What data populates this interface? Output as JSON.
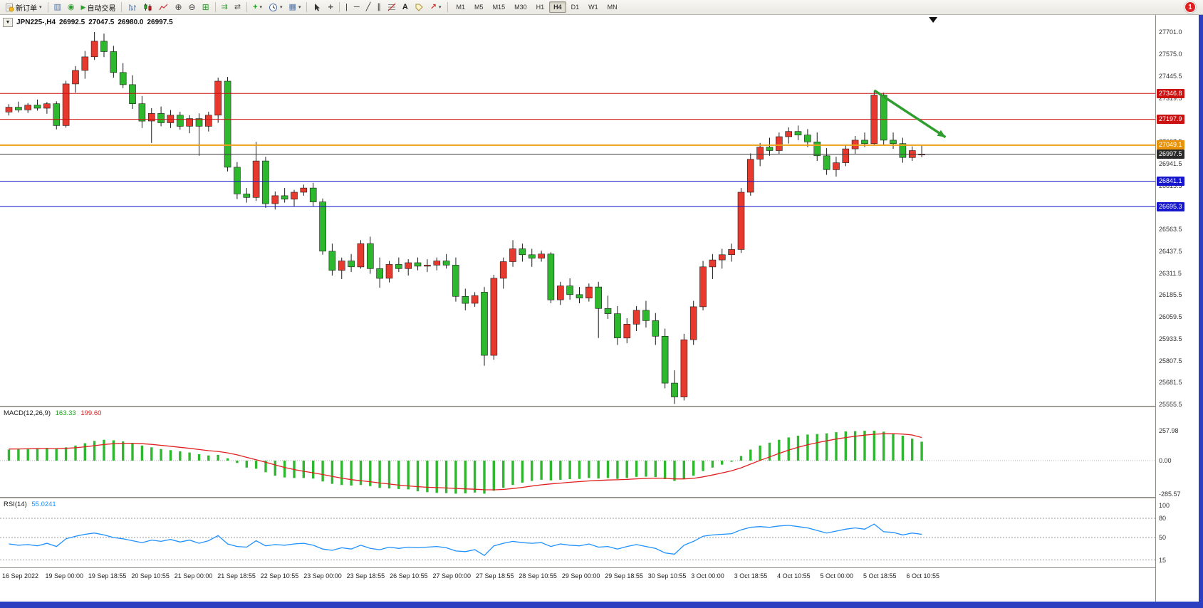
{
  "window": {
    "edge_color": "#2b3fc0"
  },
  "toolbar": {
    "new_order_label": "新订单",
    "autotrading_label": "自动交易",
    "text_tool_label": "A",
    "timeframes": [
      "M1",
      "M5",
      "M15",
      "M30",
      "H1",
      "H4",
      "D1",
      "W1",
      "MN"
    ],
    "active_timeframe": "H4",
    "notification_count": "1"
  },
  "icons": {
    "caret": "▾",
    "chart_dropdown": "▼",
    "charts": "▥",
    "sound": "◉",
    "autotrading_play": "▶",
    "zoom_in": "⊕",
    "zoom_out": "⊖",
    "tile_windows": "⊞",
    "auto_scroll": "⇉",
    "chart_shift": "⇄",
    "indicators_plus": "+",
    "templates": "▦",
    "crosshair": "+",
    "vertical_line": "|",
    "horizontal_line": "─",
    "trend_line": "╱",
    "channel": "∥",
    "arrows": "↗"
  },
  "chart": {
    "title": {
      "symbol_period": "JPN225-,H4",
      "open": "26992.5",
      "high": "27047.5",
      "low": "26980.0",
      "close": "26997.5"
    },
    "hlines": [
      {
        "price": 27346.8,
        "label": "27346.8",
        "color": "#cc1111",
        "badge_bg": "#cc1111",
        "width": 1
      },
      {
        "price": 27197.9,
        "label": "27197.9",
        "color": "#cc1111",
        "badge_bg": "#cc1111",
        "width": 1
      },
      {
        "price": 27049.1,
        "label": "27049.1",
        "color": "#eda118",
        "badge_bg": "#e8920a",
        "width": 2
      },
      {
        "price": 26997.5,
        "label": "26997.5",
        "color": "#3c3c3c",
        "badge_bg": "#2a2a2a",
        "width": 1
      },
      {
        "price": 26841.1,
        "label": "26841.1",
        "color": "#1616cc",
        "badge_bg": "#1616cc",
        "width": 1
      },
      {
        "price": 26695.3,
        "label": "26695.3",
        "color": "#1616cc",
        "badge_bg": "#1616cc",
        "width": 1
      }
    ],
    "price_axis_labels": [
      "27701.0",
      "27575.0",
      "27445.5",
      "27319.5",
      "27193.5",
      "27067.5",
      "26941.5",
      "26815.5",
      "26689.5",
      "26563.5",
      "26437.5",
      "26311.5",
      "26185.5",
      "26059.5",
      "25933.5",
      "25807.5",
      "25681.5",
      "25555.5"
    ],
    "time_axis_labels": [
      "16 Sep 2022",
      "19 Sep 00:00",
      "19 Sep 18:55",
      "20 Sep 10:55",
      "21 Sep 00:00",
      "21 Sep 18:55",
      "22 Sep 10:55",
      "23 Sep 00:00",
      "23 Sep 18:55",
      "26 Sep 10:55",
      "27 Sep 00:00",
      "27 Sep 18:55",
      "28 Sep 10:55",
      "29 Sep 00:00",
      "29 Sep 18:55",
      "30 Sep 10:55",
      "3 Oct 00:00",
      "3 Oct 18:55",
      "4 Oct 10:55",
      "5 Oct 00:00",
      "5 Oct 18:55",
      "6 Oct 10:55"
    ]
  },
  "chart_data": {
    "type": "candlestick",
    "symbol": "JPN225-",
    "timeframe": "H4",
    "y_axis_range": [
      25555.5,
      27701.0
    ],
    "candles": {
      "up_color": "#e8392e",
      "down_color": "#2eb82e",
      "wick_color": "#1a1a1a",
      "ohlc": [
        [
          27240,
          27285,
          27220,
          27268
        ],
        [
          27268,
          27300,
          27238,
          27252
        ],
        [
          27252,
          27292,
          27235,
          27280
        ],
        [
          27280,
          27312,
          27248,
          27262
        ],
        [
          27262,
          27298,
          27230,
          27288
        ],
        [
          27288,
          27302,
          27140,
          27162
        ],
        [
          27162,
          27420,
          27150,
          27402
        ],
        [
          27402,
          27505,
          27352,
          27480
        ],
        [
          27480,
          27592,
          27432,
          27558
        ],
        [
          27558,
          27701,
          27540,
          27648
        ],
        [
          27648,
          27692,
          27556,
          27588
        ],
        [
          27588,
          27622,
          27438,
          27468
        ],
        [
          27468,
          27522,
          27378,
          27398
        ],
        [
          27398,
          27452,
          27258,
          27288
        ],
        [
          27288,
          27332,
          27148,
          27188
        ],
        [
          27188,
          27262,
          27062,
          27232
        ],
        [
          27232,
          27272,
          27158,
          27178
        ],
        [
          27178,
          27252,
          27148,
          27222
        ],
        [
          27222,
          27242,
          27138,
          27158
        ],
        [
          27158,
          27222,
          27118,
          27202
        ],
        [
          27202,
          27232,
          26988,
          27158
        ],
        [
          27158,
          27242,
          27128,
          27222
        ],
        [
          27222,
          27438,
          27178,
          27418
        ],
        [
          27418,
          27442,
          26898,
          26922
        ],
        [
          26922,
          26952,
          26738,
          26768
        ],
        [
          26768,
          26802,
          26718,
          26748
        ],
        [
          26748,
          27068,
          26728,
          26958
        ],
        [
          26958,
          26982,
          26688,
          26712
        ],
        [
          26712,
          26782,
          26678,
          26758
        ],
        [
          26758,
          26802,
          26718,
          26738
        ],
        [
          26738,
          26792,
          26698,
          26778
        ],
        [
          26778,
          26822,
          26758,
          26802
        ],
        [
          26802,
          26832,
          26698,
          26722
        ],
        [
          26722,
          26742,
          26418,
          26438
        ],
        [
          26438,
          26482,
          26298,
          26328
        ],
        [
          26328,
          26402,
          26278,
          26382
        ],
        [
          26382,
          26422,
          26318,
          26348
        ],
        [
          26348,
          26502,
          26338,
          26482
        ],
        [
          26482,
          26522,
          26308,
          26338
        ],
        [
          26338,
          26402,
          26228,
          26282
        ],
        [
          26282,
          26382,
          26258,
          26362
        ],
        [
          26362,
          26402,
          26318,
          26338
        ],
        [
          26338,
          26392,
          26298,
          26372
        ],
        [
          26372,
          26402,
          26328,
          26352
        ],
        [
          26352,
          26392,
          26318,
          26358
        ],
        [
          26358,
          26402,
          26328,
          26382
        ],
        [
          26382,
          26422,
          26338,
          26358
        ],
        [
          26358,
          26402,
          26148,
          26178
        ],
        [
          26178,
          26222,
          26098,
          26138
        ],
        [
          26138,
          26202,
          26118,
          26182
        ],
        [
          26202,
          26232,
          25778,
          25838
        ],
        [
          25838,
          26302,
          25812,
          26282
        ],
        [
          26282,
          26402,
          26222,
          26378
        ],
        [
          26378,
          26502,
          26348,
          26452
        ],
        [
          26452,
          26482,
          26378,
          26418
        ],
        [
          26418,
          26452,
          26348,
          26398
        ],
        [
          26398,
          26442,
          26378,
          26422
        ],
        [
          26422,
          26432,
          26138,
          26158
        ],
        [
          26158,
          26262,
          26128,
          26238
        ],
        [
          26238,
          26282,
          26158,
          26188
        ],
        [
          26188,
          26232,
          26138,
          26168
        ],
        [
          26168,
          26252,
          26148,
          26232
        ],
        [
          26232,
          26262,
          25938,
          26108
        ],
        [
          26108,
          26182,
          26048,
          26078
        ],
        [
          26078,
          26122,
          25898,
          25938
        ],
        [
          25938,
          26052,
          25908,
          26018
        ],
        [
          26018,
          26122,
          25978,
          26098
        ],
        [
          26098,
          26152,
          25998,
          26038
        ],
        [
          26038,
          26082,
          25898,
          25948
        ],
        [
          25948,
          25992,
          25648,
          25678
        ],
        [
          25678,
          25752,
          25558,
          25598
        ],
        [
          25598,
          25962,
          25578,
          25928
        ],
        [
          25928,
          26152,
          25898,
          26118
        ],
        [
          26118,
          26382,
          26098,
          26348
        ],
        [
          26348,
          26422,
          26278,
          26388
        ],
        [
          26388,
          26452,
          26338,
          26418
        ],
        [
          26418,
          26482,
          26378,
          26448
        ],
        [
          26448,
          26802,
          26428,
          26778
        ],
        [
          26778,
          27002,
          26758,
          26968
        ],
        [
          26968,
          27062,
          26928,
          27038
        ],
        [
          27038,
          27092,
          26988,
          27018
        ],
        [
          27018,
          27122,
          26998,
          27098
        ],
        [
          27098,
          27152,
          27058,
          27128
        ],
        [
          27128,
          27162,
          27078,
          27108
        ],
        [
          27108,
          27142,
          27038,
          27068
        ],
        [
          27068,
          27122,
          26958,
          26988
        ],
        [
          26988,
          27032,
          26878,
          26908
        ],
        [
          26908,
          26982,
          26868,
          26948
        ],
        [
          26948,
          27052,
          26928,
          27028
        ],
        [
          27028,
          27102,
          26998,
          27078
        ],
        [
          27078,
          27122,
          27038,
          27058
        ],
        [
          27058,
          27362,
          27048,
          27338
        ],
        [
          27338,
          27352,
          27048,
          27078
        ],
        [
          27078,
          27122,
          27028,
          27058
        ],
        [
          27058,
          27092,
          26948,
          26978
        ],
        [
          26978,
          27042,
          26958,
          27018
        ],
        [
          26992.5,
          27047.5,
          26980.0,
          26997.5
        ]
      ]
    },
    "macd": {
      "label": "MACD(12,26,9)",
      "main_value": "163.33",
      "signal_value": "199.60",
      "axis": [
        "257.98",
        "0.00",
        "-285.57"
      ],
      "histogram_color": "#2eb82e",
      "signal_color": "#e02020",
      "histogram": [
        95,
        100,
        105,
        108,
        110,
        105,
        115,
        130,
        150,
        170,
        180,
        175,
        165,
        150,
        130,
        115,
        100,
        90,
        80,
        70,
        55,
        45,
        50,
        20,
        -20,
        -60,
        -70,
        -100,
        -130,
        -145,
        -150,
        -150,
        -155,
        -180,
        -200,
        -210,
        -215,
        -210,
        -220,
        -235,
        -240,
        -245,
        -248,
        -265,
        -272,
        -278,
        -280,
        -285,
        -282,
        -275,
        -285,
        -260,
        -235,
        -210,
        -190,
        -175,
        -165,
        -170,
        -165,
        -160,
        -158,
        -150,
        -155,
        -150,
        -158,
        -150,
        -140,
        -138,
        -142,
        -160,
        -175,
        -160,
        -130,
        -90,
        -60,
        -35,
        -10,
        40,
        95,
        130,
        155,
        180,
        200,
        215,
        225,
        230,
        235,
        245,
        252,
        255,
        258,
        258,
        250,
        235,
        215,
        190,
        163.33
      ],
      "signal": [
        100,
        101,
        102,
        103,
        104,
        104,
        106,
        111,
        119,
        129,
        139,
        146,
        150,
        150,
        146,
        140,
        132,
        124,
        115,
        106,
        96,
        86,
        79,
        67,
        50,
        28,
        8,
        -14,
        -37,
        -59,
        -77,
        -92,
        -105,
        -120,
        -136,
        -151,
        -164,
        -173,
        -182,
        -193,
        -202,
        -211,
        -218,
        -225,
        -230,
        -233,
        -236,
        -240,
        -244,
        -247,
        -251,
        -252,
        -249,
        -241,
        -231,
        -219,
        -209,
        -201,
        -194,
        -187,
        -181,
        -175,
        -171,
        -167,
        -165,
        -162,
        -157,
        -154,
        -151,
        -153,
        -158,
        -158,
        -153,
        -140,
        -124,
        -106,
        -87,
        -62,
        -30,
        2,
        32,
        62,
        90,
        115,
        137,
        155,
        171,
        186,
        199,
        210,
        220,
        227,
        232,
        233,
        229,
        221,
        199.6
      ]
    },
    "rsi": {
      "label": "RSI(14)",
      "value": "55.0241",
      "color": "#1e90ff",
      "levels": [
        "100",
        "80",
        "50",
        "15"
      ],
      "dotted_levels": [
        80,
        50,
        15
      ],
      "series": [
        40,
        38,
        39,
        37,
        41,
        36,
        48,
        52,
        55,
        57,
        54,
        50,
        48,
        45,
        42,
        46,
        44,
        47,
        43,
        46,
        41,
        45,
        53,
        40,
        36,
        35,
        45,
        37,
        39,
        38,
        40,
        41,
        38,
        32,
        30,
        34,
        32,
        38,
        33,
        31,
        35,
        33,
        35,
        34,
        35,
        36,
        34,
        29,
        28,
        31,
        22,
        37,
        41,
        44,
        42,
        41,
        42,
        36,
        40,
        38,
        37,
        40,
        35,
        36,
        32,
        36,
        39,
        36,
        33,
        26,
        24,
        38,
        44,
        52,
        54,
        55,
        56,
        62,
        66,
        67,
        66,
        68,
        69,
        67,
        65,
        61,
        57,
        60,
        63,
        65,
        63,
        71,
        59,
        58,
        54,
        57,
        55.02
      ]
    },
    "arrow_annotation": {
      "from_bar": 91,
      "from_price": 27365,
      "to_bar": 98.5,
      "to_price": 27095,
      "color": "#2f9e2f"
    },
    "top_marker": {
      "bar": 97.2
    }
  }
}
